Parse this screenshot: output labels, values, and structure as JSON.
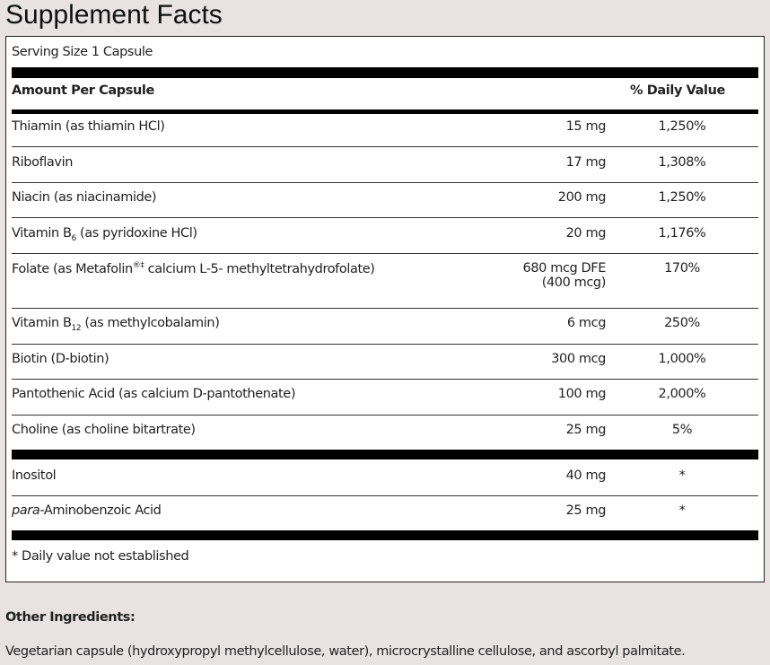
{
  "title": "Supplement Facts",
  "serving": "Serving Size 1 Capsule",
  "header": {
    "amount": "Amount Per Capsule",
    "dv": "% Daily Value"
  },
  "rows": [
    {
      "name": "Thiamin (as thiamin HCl)",
      "amt": "15 mg",
      "dv": "1,250%"
    },
    {
      "name": "Riboflavin",
      "amt": "17 mg",
      "dv": "1,308%"
    },
    {
      "name": "Niacin (as niacinamide)",
      "amt": "200 mg",
      "dv": "1,250%"
    },
    {
      "name_a": "Vitamin B",
      "sub": "6",
      "name_b": " (as pyridoxine HCl)",
      "amt": "20 mg",
      "dv": "1,176%"
    },
    {
      "name_a": "Folate (as Metafolin",
      "sup": "®‡",
      "name_b": " calcium L-5- methyltetrahydrofolate)",
      "amt": "680 mcg DFE",
      "amt2": "(400 mcg)",
      "dv": "170%"
    },
    {
      "name_a": "Vitamin B",
      "sub": "12",
      "name_b": " (as methylcobalamin)",
      "amt": "6 mcg",
      "dv": "250%"
    },
    {
      "name": "Biotin (D-biotin)",
      "amt": "300 mcg",
      "dv": "1,000%"
    },
    {
      "name": "Pantothenic Acid (as calcium D-pantothenate)",
      "amt": "100 mg",
      "dv": "2,000%"
    },
    {
      "name": "Choline (as choline bitartrate)",
      "amt": "25 mg",
      "dv": "5%"
    },
    {
      "name": "Inositol",
      "amt": "40 mg",
      "dv": "*"
    },
    {
      "name_i": "para",
      "name_b": "-Aminobenzoic Acid",
      "amt": "25 mg",
      "dv": "*"
    }
  ],
  "footnote": "* Daily value not established",
  "other": {
    "label": "Other Ingredients:",
    "text": "Vegetarian capsule (hydroxypropyl methylcellulose, water), microcrystalline cellulose, and ascorbyl palmitate."
  }
}
